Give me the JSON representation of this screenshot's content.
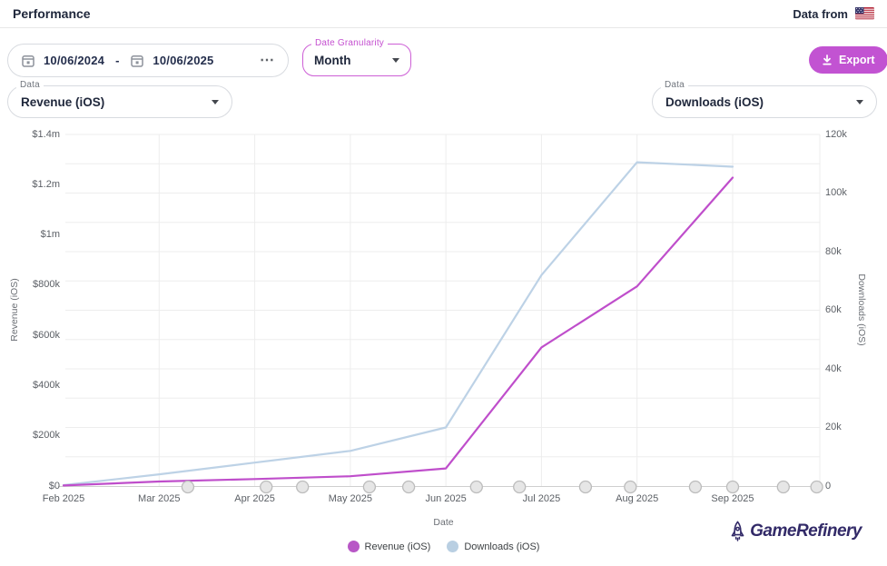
{
  "header": {
    "title": "Performance",
    "data_from_label": "Data from"
  },
  "toolbar": {
    "date_range": {
      "start": "10/06/2024",
      "separator": "-",
      "end": "10/06/2025",
      "more": "⋯"
    },
    "granularity": {
      "label": "Date Granularity",
      "value": "Month"
    },
    "export_label": "Export"
  },
  "selectors": {
    "left": {
      "label": "Data",
      "value": "Revenue (iOS)"
    },
    "right": {
      "label": "Data",
      "value": "Downloads (iOS)"
    }
  },
  "colors": {
    "accent": "#c253d2",
    "revenue": "#bf4ecb",
    "downloads": "#bdd2e6",
    "logo": "#322a68"
  },
  "chart_data": {
    "type": "line",
    "x": [
      "Feb 2025",
      "Mar 2025",
      "Apr 2025",
      "May 2025",
      "Jun 2025",
      "Jul 2025",
      "Aug 2025",
      "Sep 2025"
    ],
    "series": [
      {
        "name": "Revenue (iOS)",
        "axis": "left",
        "color": "#bf4ecb",
        "values": [
          2000,
          18000,
          28000,
          39000,
          70000,
          552000,
          795000,
          1228000
        ]
      },
      {
        "name": "Downloads (iOS)",
        "axis": "right",
        "color": "#bdd2e6",
        "values": [
          300,
          4000,
          8000,
          12000,
          20000,
          72000,
          110500,
          109000
        ]
      }
    ],
    "left_axis": {
      "title": "Revenue (iOS)",
      "range": [
        0,
        1400000
      ],
      "ticks": [
        "$0",
        "$200k",
        "$400k",
        "$600k",
        "$800k",
        "$1m",
        "$1.2m",
        "$1.4m"
      ]
    },
    "right_axis": {
      "title": "Downloads (iOS)",
      "range": [
        0,
        120000
      ],
      "ticks": [
        "0",
        "20k",
        "40k",
        "60k",
        "80k",
        "100k",
        "120k"
      ]
    },
    "x_axis": {
      "title": "Date"
    },
    "grid": true,
    "legend_position": "bottom-center",
    "event_markers_month_offset": [
      1.3,
      2.12,
      2.5,
      3.2,
      3.61,
      4.32,
      4.77,
      5.46,
      5.93,
      6.61,
      7.0,
      7.53,
      7.88
    ],
    "legend": [
      {
        "label": "Revenue (iOS)",
        "color": "#b857c6"
      },
      {
        "label": "Downloads (iOS)",
        "color": "#b9cfe2"
      }
    ]
  },
  "footer": {
    "brand": "GameRefinery"
  }
}
